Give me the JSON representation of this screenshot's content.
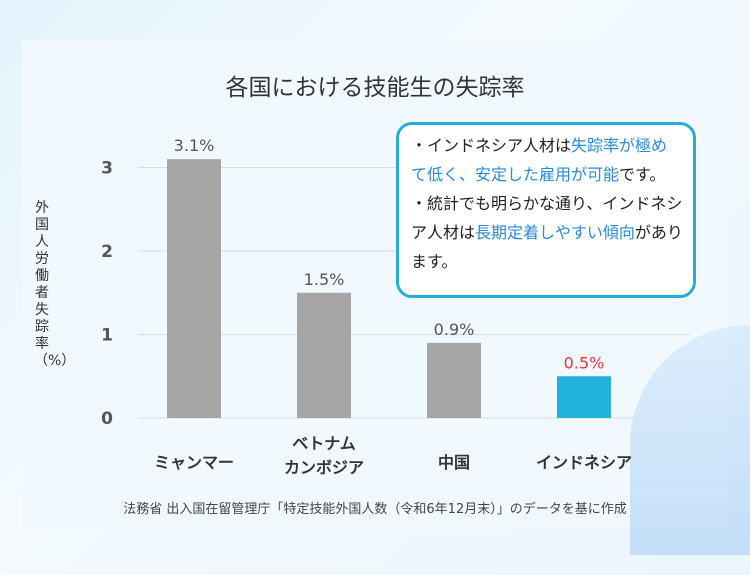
{
  "chart_data": {
    "type": "bar",
    "title": "各国における技能生の失踪率",
    "ylabel": "外国人労働者失踪率（%）",
    "ylim": [
      0,
      3
    ],
    "yticks": [
      0,
      1,
      2,
      3
    ],
    "categories": [
      [
        "ミャンマー"
      ],
      [
        "ベトナム",
        "カンボジア"
      ],
      [
        "中国"
      ],
      [
        "インドネシア"
      ]
    ],
    "values": [
      3.1,
      1.5,
      0.9,
      0.5
    ],
    "data_labels": [
      "3.1%",
      "1.5%",
      "0.9%",
      "0.5%"
    ],
    "colors": [
      "#a5a5a5",
      "#a5a5a5",
      "#a5a5a5",
      "#21b1d9"
    ],
    "label_colors": [
      "#555555",
      "#555555",
      "#555555",
      "#e8343a"
    ],
    "grid": true
  },
  "note": {
    "b1": [
      {
        "t": "・インドネシア人材は"
      },
      {
        "t": "失踪率が極めて低く、安定した雇用が可能",
        "hl": true
      },
      {
        "t": "です。"
      }
    ],
    "b2": [
      {
        "t": "・統計でも明らかな通り、インドネシア人材は"
      },
      {
        "t": "長期定着しやすい傾向",
        "hl": true
      },
      {
        "t": "があります。"
      }
    ]
  },
  "source": "法務省 出入国在留管理庁「特定技能外国人数（令和6年12月末）」のデータを基に作成"
}
